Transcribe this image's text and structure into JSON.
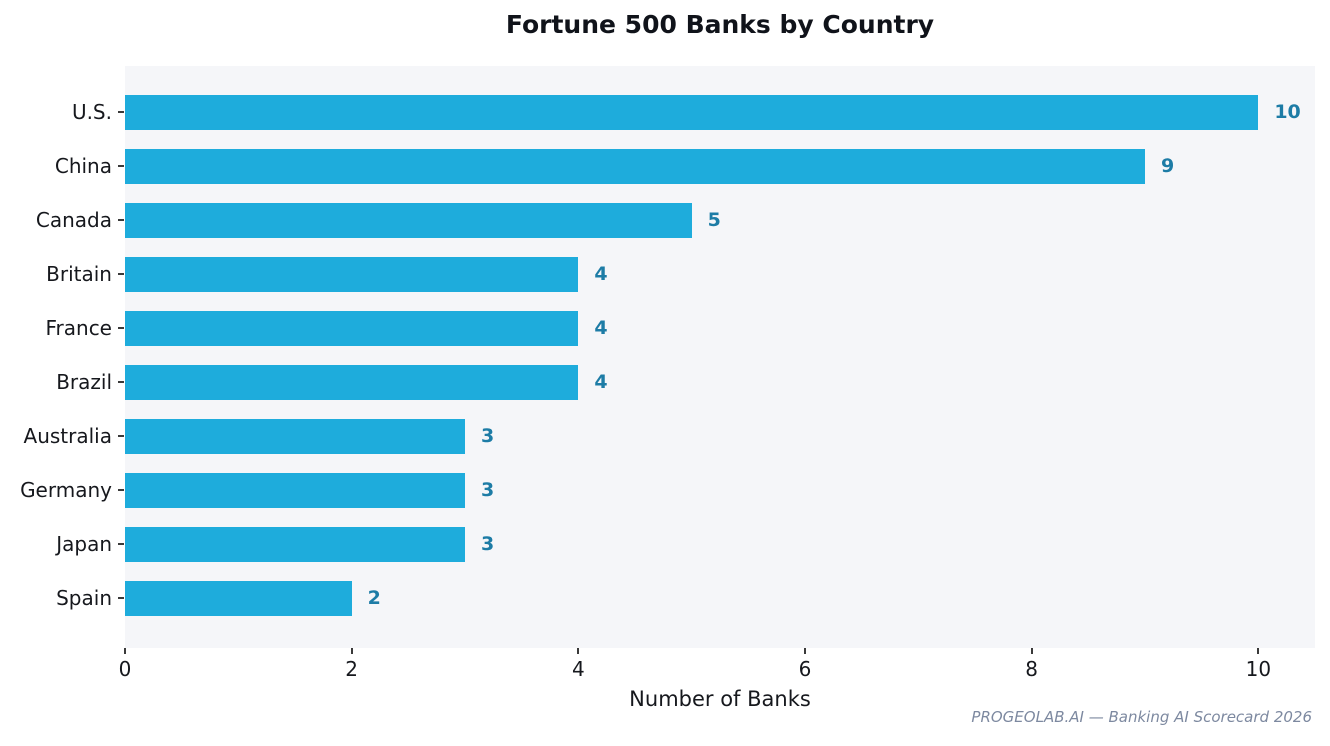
{
  "title": "Fortune 500 Banks by Country",
  "xlabel": "Number of Banks",
  "watermark": "PROGEOLAB.AI — Banking AI Scorecard 2026",
  "colors": {
    "bar": "#1eacdc",
    "value_label": "#1d7ca6",
    "plot_background": "#f5f6f9",
    "tick": "#3a3a3a",
    "text": "#16181d",
    "watermark": "#7d89a0"
  },
  "chart_data": {
    "type": "bar",
    "orientation": "horizontal",
    "title": "Fortune 500 Banks by Country",
    "xlabel": "Number of Banks",
    "ylabel": "",
    "categories": [
      "U.S.",
      "China",
      "Canada",
      "Britain",
      "France",
      "Brazil",
      "Australia",
      "Germany",
      "Japan",
      "Spain"
    ],
    "values": [
      10,
      9,
      5,
      4,
      4,
      4,
      3,
      3,
      3,
      2
    ],
    "value_labels": [
      "10",
      "9",
      "5",
      "4",
      "4",
      "4",
      "3",
      "3",
      "3",
      "2"
    ],
    "xlim": [
      0,
      10.5
    ],
    "xticks": [
      0,
      2,
      4,
      6,
      8,
      10
    ],
    "grid": false,
    "legend": "none",
    "bars_sorted_descending": true,
    "annotation": "PROGEOLAB.AI — Banking AI Scorecard 2026"
  }
}
